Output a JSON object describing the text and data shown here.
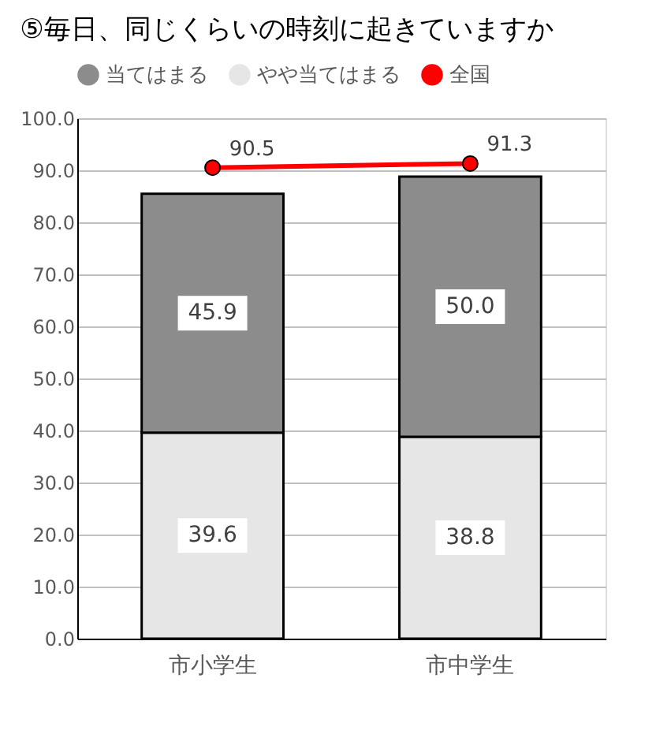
{
  "chart_data": {
    "type": "bar",
    "title": "⑤毎日、同じくらいの時刻に起きていますか",
    "categories": [
      "市小学生",
      "市中学生"
    ],
    "stacked": true,
    "series": [
      {
        "name": "やや当てはまる",
        "color": "#e6e6e6",
        "values": [
          39.6,
          38.8
        ],
        "value_labels": [
          "39.6",
          "38.8"
        ]
      },
      {
        "name": "当てはまる",
        "color": "#8c8c8c",
        "values": [
          45.9,
          50.0
        ],
        "value_labels": [
          "45.9",
          "50.0"
        ]
      },
      {
        "name": "全国",
        "type": "line",
        "color": "#ff0000",
        "values": [
          90.5,
          91.3
        ],
        "value_labels": [
          "90.5",
          "91.3"
        ],
        "marker": "circle"
      }
    ],
    "ylim": [
      0,
      100
    ],
    "yticks": [
      {
        "value": 0,
        "label": "0.0"
      },
      {
        "value": 10,
        "label": "10.0"
      },
      {
        "value": 20,
        "label": "20.0"
      },
      {
        "value": 30,
        "label": "30.0"
      },
      {
        "value": 40,
        "label": "40.0"
      },
      {
        "value": 50,
        "label": "50.0"
      },
      {
        "value": 60,
        "label": "60.0"
      },
      {
        "value": 70,
        "label": "70.0"
      },
      {
        "value": 80,
        "label": "80.0"
      },
      {
        "value": 90,
        "label": "90.0"
      },
      {
        "value": 100,
        "label": "100.0"
      }
    ],
    "grid": "y",
    "legend": "top",
    "data_labels": true
  }
}
